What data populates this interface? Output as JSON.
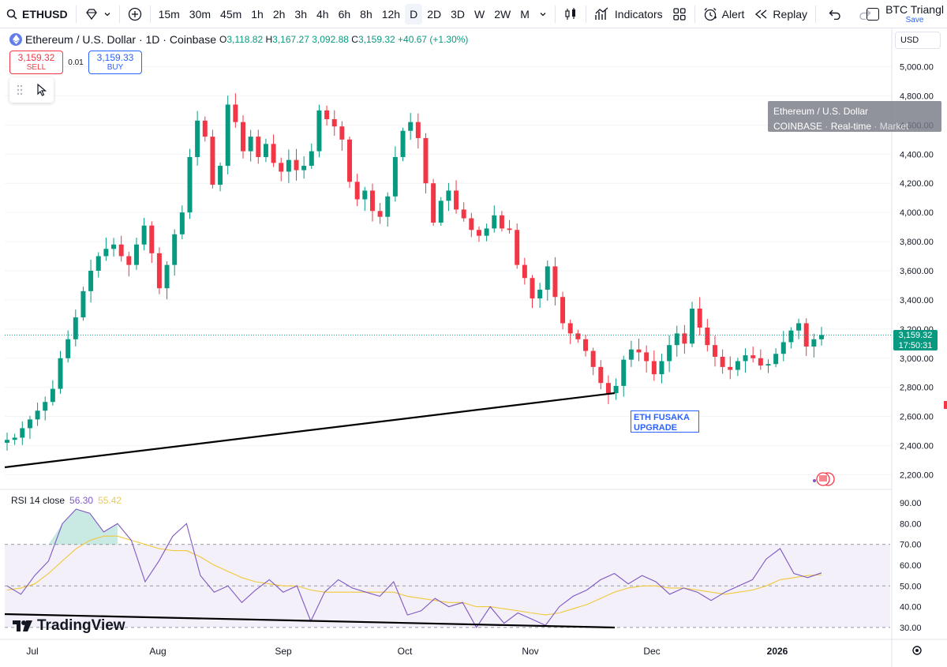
{
  "toolbar": {
    "symbol": "ETHUSD",
    "intervals": [
      "15m",
      "30m",
      "45m",
      "1h",
      "2h",
      "3h",
      "4h",
      "6h",
      "8h",
      "12h",
      "D",
      "2D",
      "3D",
      "W",
      "2W",
      "M"
    ],
    "active_interval": "D",
    "indicators_label": "Indicators",
    "alert_label": "Alert",
    "replay_label": "Replay",
    "layout_name": "BTC Triangl",
    "save_label": "Save"
  },
  "legend": {
    "title": "Ethereum / U.S. Dollar · 1D · Coinbase",
    "o_label": "O",
    "o": "3,118.82",
    "h_label": "H",
    "h": "3,167.27",
    "l_label": "",
    "l": "3,092.88",
    "c_label": "C",
    "c": "3,159.32",
    "change": "+40.67 (+1.30%)"
  },
  "trade": {
    "sell_price": "3,159.32",
    "sell_label": "SELL",
    "spread": "0.01",
    "buy_price": "3,159.33",
    "buy_label": "BUY"
  },
  "currency": "USD",
  "tooltip": {
    "line1": "Ethereum / U.S. Dollar",
    "exchange": "COINBASE",
    "realtime": "Real-time",
    "market": "Market"
  },
  "price_badge": {
    "price": "3,159.32",
    "countdown": "17:50:31"
  },
  "event": {
    "line1": "ETH FUSAKA",
    "line2": "UPGRADE"
  },
  "rsi_legend": {
    "name": "RSI 14 close",
    "rsi": "56.30",
    "ma": "55.42"
  },
  "brand": "TradingView",
  "colors": {
    "up": "#089981",
    "down": "#f23645",
    "rsi": "#7e57c2",
    "rsi_ma": "#f0c93c",
    "accent": "#2962ff"
  },
  "chart_data": [
    {
      "type": "candlestick",
      "title": "Ethereum / U.S. Dollar · 1D · Coinbase",
      "y_axis_ticks": [
        2200,
        2400,
        2600,
        2800,
        3000,
        3200,
        3400,
        3600,
        3800,
        4000,
        4200,
        4400,
        4600,
        4800,
        5000
      ],
      "ylim": [
        2100,
        5100
      ],
      "x_axis_labels": [
        "Jul",
        "Aug",
        "Sep",
        "Oct",
        "Nov",
        "Dec",
        "2026"
      ],
      "last_price": 3159.32,
      "close_path": [
        2440,
        2455,
        2520,
        2580,
        2640,
        2700,
        2790,
        3000,
        3130,
        3280,
        3460,
        3600,
        3700,
        3750,
        3780,
        3700,
        3640,
        3780,
        3910,
        3720,
        3480,
        3640,
        3850,
        4000,
        4380,
        4630,
        4520,
        4190,
        4320,
        4740,
        4620,
        4420,
        4520,
        4380,
        4470,
        4340,
        4280,
        4360,
        4290,
        4320,
        4420,
        4700,
        4640,
        4590,
        4500,
        4210,
        4090,
        4150,
        4010,
        3970,
        4110,
        4380,
        4560,
        4620,
        4510,
        4200,
        3930,
        4080,
        4150,
        4020,
        3960,
        3880,
        3840,
        3890,
        3980,
        3890,
        3880,
        3640,
        3550,
        3410,
        3470,
        3630,
        3420,
        3240,
        3170,
        3130,
        3050,
        2940,
        2830,
        2760,
        2810,
        2990,
        3060,
        3040,
        2980,
        2890,
        2980,
        3090,
        3170,
        3100,
        3340,
        3210,
        3090,
        3010,
        2940,
        2920,
        2980,
        3020,
        3000,
        2950,
        2960,
        3030,
        3110,
        3190,
        3240,
        3080,
        3130,
        3159
      ],
      "annotations": [
        "ETH FUSAKA UPGRADE"
      ]
    },
    {
      "type": "line",
      "title": "RSI 14 close",
      "series": [
        {
          "name": "RSI",
          "values": [
            50,
            46,
            55,
            62,
            80,
            87,
            85,
            76,
            80,
            72,
            52,
            62,
            74,
            80,
            55,
            47,
            50,
            42,
            48,
            53,
            47,
            50,
            33,
            47,
            53,
            49,
            47,
            45,
            52,
            36,
            38,
            44,
            40,
            42,
            30,
            40,
            32,
            37,
            34,
            31,
            40,
            45,
            48,
            53,
            56,
            51,
            55,
            52,
            46,
            49,
            47,
            43,
            47,
            50,
            53,
            63,
            68,
            56,
            54,
            56.3
          ]
        },
        {
          "name": "MA",
          "values": [
            48,
            49,
            51,
            56,
            62,
            68,
            72,
            74,
            74,
            72,
            70,
            68,
            67,
            67,
            64,
            60,
            57,
            54,
            52,
            51,
            50,
            50,
            48,
            47,
            47,
            47,
            47,
            47,
            47,
            45,
            44,
            43,
            42,
            42,
            40,
            40,
            39,
            38,
            37,
            36,
            37,
            39,
            41,
            44,
            47,
            49,
            50,
            50,
            49,
            49,
            48,
            47,
            46,
            47,
            48,
            50,
            53,
            54,
            55,
            55.42
          ]
        }
      ],
      "y_axis_ticks": [
        30,
        40,
        50,
        60,
        70,
        80,
        90
      ],
      "ylim": [
        25,
        95
      ],
      "bands": [
        30,
        50,
        70
      ]
    }
  ]
}
